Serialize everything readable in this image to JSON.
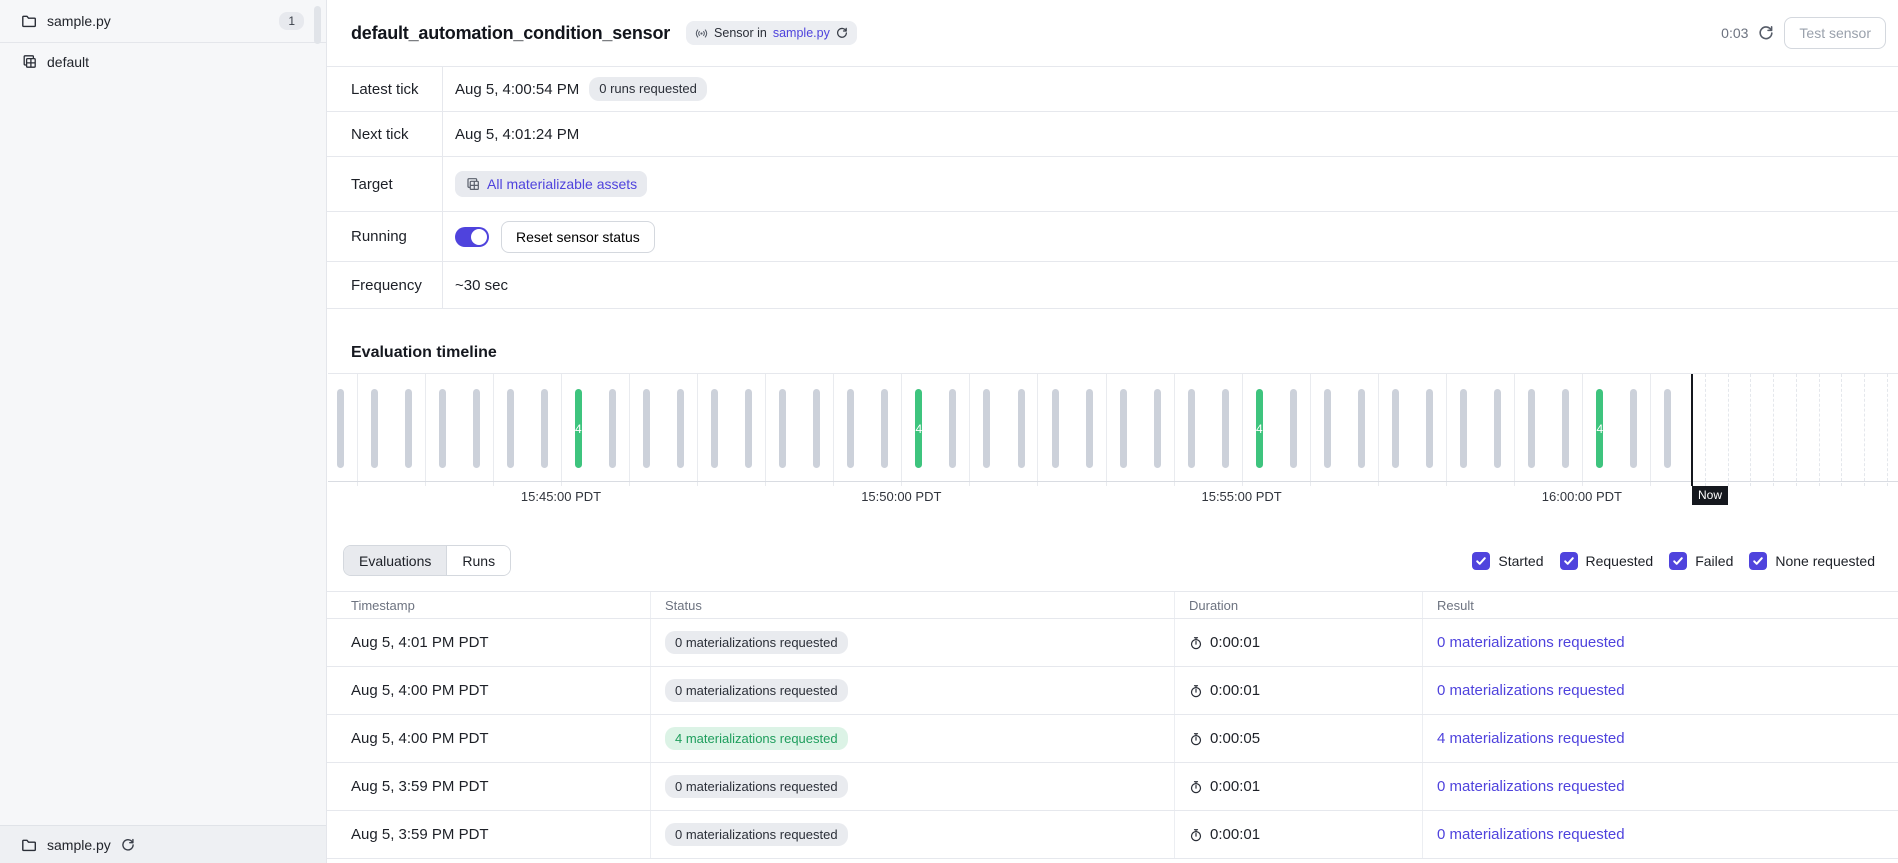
{
  "colors": {
    "accent": "#4f43dd",
    "link": "#4f43dd",
    "success_text": "#1f9e5d",
    "success_bg": "#dcf3e6",
    "bar_gray": "#ccd1da",
    "bar_green": "#3ec47e",
    "now_marker": "#15181e"
  },
  "icons": {
    "folder": "folder-icon",
    "asset_group": "layered-squares-icon",
    "sensor": "radio-waves-icon",
    "refresh": "refresh-icon",
    "stopwatch": "stopwatch-icon",
    "check": "checkmark-icon"
  },
  "sidebar": {
    "top_item": {
      "label": "sample.py",
      "badge": "1"
    },
    "nav_items": [
      {
        "label": "default"
      }
    ],
    "footer": {
      "label": "sample.py"
    }
  },
  "header": {
    "title": "default_automation_condition_sensor",
    "tag": {
      "prefix": "Sensor in",
      "link": "sample.py"
    },
    "poll_timer": "0:03",
    "test_button": "Test sensor"
  },
  "details": {
    "latest_tick": {
      "label": "Latest tick",
      "value": "Aug 5, 4:00:54 PM",
      "badge": "0 runs requested"
    },
    "next_tick": {
      "label": "Next tick",
      "value": "Aug 5, 4:01:24 PM"
    },
    "target": {
      "label": "Target",
      "pill_text": "All materializable assets"
    },
    "running": {
      "label": "Running",
      "toggle_on": true,
      "button_label": "Reset sensor status"
    },
    "frequency": {
      "label": "Frequency",
      "value": "~30 sec"
    }
  },
  "timeline": {
    "heading": "Evaluation timeline"
  },
  "chart_data": {
    "type": "timeline-ticks",
    "tick_interval_sec": 30,
    "num_ticks": 40,
    "green_tick_indices": [
      7,
      17,
      27,
      37
    ],
    "green_tick_value": "4",
    "gray_tick_value": "0",
    "axis_tick_labels": [
      "15:45:00 PDT",
      "15:50:00 PDT",
      "15:55:00 PDT",
      "16:00:00 PDT"
    ],
    "now_label": "Now"
  },
  "evaluations": {
    "tabs": [
      {
        "label": "Evaluations",
        "active": true
      },
      {
        "label": "Runs",
        "active": false
      }
    ],
    "filters": [
      {
        "label": "Started",
        "checked": true
      },
      {
        "label": "Requested",
        "checked": true
      },
      {
        "label": "Failed",
        "checked": true
      },
      {
        "label": "None requested",
        "checked": true
      }
    ],
    "table": {
      "columns": [
        "Timestamp",
        "Status",
        "Duration",
        "Result"
      ],
      "rows": [
        {
          "timestamp": "Aug 5, 4:01 PM PDT",
          "status": "0 materializations requested",
          "status_kind": "none",
          "duration": "0:00:01",
          "result": "0 materializations requested"
        },
        {
          "timestamp": "Aug 5, 4:00 PM PDT",
          "status": "0 materializations requested",
          "status_kind": "none",
          "duration": "0:00:01",
          "result": "0 materializations requested"
        },
        {
          "timestamp": "Aug 5, 4:00 PM PDT",
          "status": "4 materializations requested",
          "status_kind": "success",
          "duration": "0:00:05",
          "result": "4 materializations requested"
        },
        {
          "timestamp": "Aug 5, 3:59 PM PDT",
          "status": "0 materializations requested",
          "status_kind": "none",
          "duration": "0:00:01",
          "result": "0 materializations requested"
        },
        {
          "timestamp": "Aug 5, 3:59 PM PDT",
          "status": "0 materializations requested",
          "status_kind": "none",
          "duration": "0:00:01",
          "result": "0 materializations requested"
        }
      ]
    }
  }
}
